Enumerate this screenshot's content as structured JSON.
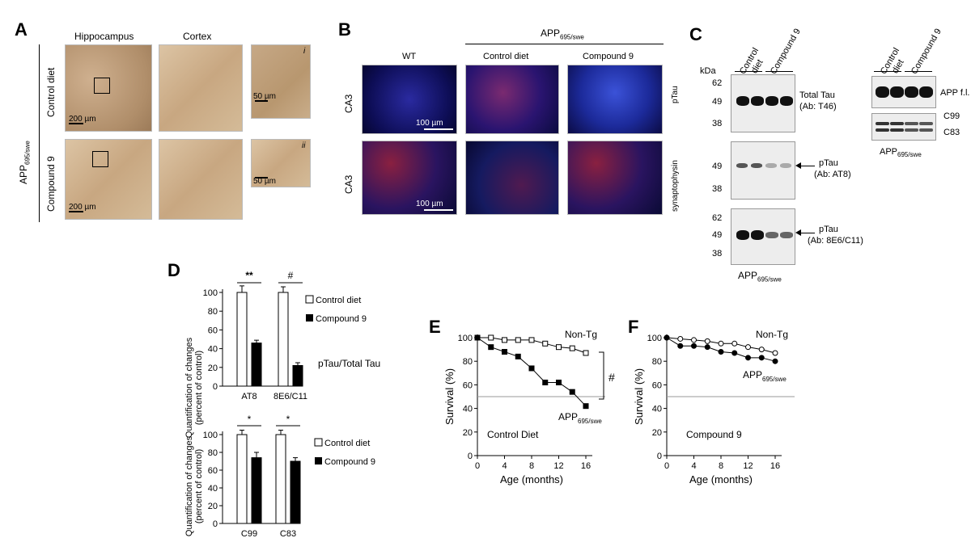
{
  "panelA": {
    "label": "A",
    "col_hippocampus": "Hippocampus",
    "col_cortex": "Cortex",
    "row_control": "Control diet",
    "row_compound": "Compound 9",
    "genotype": "APP",
    "genotype_sub": "695/swe",
    "inset_i": "i",
    "inset_ii": "ii",
    "scale_200a": "200 µm",
    "scale_200b": "200 µm",
    "scale_50a": "50 µm",
    "scale_50b": "50 µm"
  },
  "panelB": {
    "label": "B",
    "group_main": "APP",
    "group_sub": "695/swe",
    "col_wt": "WT",
    "col_control": "Control diet",
    "col_compound": "Compound 9",
    "row_ca3_1": "CA3",
    "row_ca3_2": "CA3",
    "marker_ptau": "pTau",
    "marker_syn": "synaptophysin",
    "scale_a": "100 µm",
    "scale_b": "100 µm"
  },
  "panelC": {
    "label": "C",
    "kda": "kDa",
    "lane_control_1": "Control",
    "lane_control_2": "diet",
    "lane_compound": "Compound 9",
    "lane_control_r1": "Control",
    "lane_control_r2": "diet",
    "lane_compound_r": "Compound 9",
    "mw1": [
      "62",
      "49",
      "38"
    ],
    "mw2": [
      "49",
      "38"
    ],
    "mw3": [
      "62",
      "49",
      "38"
    ],
    "blot1_name": "Total Tau",
    "blot1_ab": "(Ab: T46)",
    "blot2_name": "pTau",
    "blot2_ab": "(Ab: AT8)",
    "blot3_name": "pTau",
    "blot3_ab": "(Ab: 8E6/C11)",
    "app_fl": "APP f.l.",
    "c99": "C99",
    "c83": "C83",
    "genotype_main": "APP",
    "genotype_sub": "695/swe",
    "genotype_main_r": "APP",
    "genotype_sub_r": "695/swe"
  },
  "panelD": {
    "label": "D",
    "ylabel1": "Quantification of changes",
    "ylabel2": "(percent of control)",
    "ylabel1b": "Quantification of changes",
    "ylabel2b": "(percent of control)",
    "legend_control": "Control diet",
    "legend_compound": "Compound 9",
    "legend_control_b": "Control diet",
    "legend_compound_b": "Compound 9",
    "ratio_label": "pTau/Total Tau",
    "sig_top_1": "**",
    "sig_top_2": "#",
    "sig_bot_1": "*",
    "sig_bot_2": "*"
  },
  "panelE": {
    "label": "E",
    "annotation": "Control Diet",
    "nontg": "Non-Tg",
    "app": "APP",
    "app_sub": "695/swe",
    "sig": "#"
  },
  "panelF": {
    "label": "F",
    "annotation": "Compound 9",
    "nontg": "Non-Tg",
    "app": "APP",
    "app_sub": "695/swe"
  },
  "chart_data": [
    {
      "type": "bar",
      "title": "",
      "ylabel": "Quantification of changes (percent of control)",
      "categories": [
        "AT8",
        "8E6/C11"
      ],
      "series": [
        {
          "name": "Control diet",
          "values": [
            100,
            100
          ],
          "error": [
            7,
            6
          ]
        },
        {
          "name": "Compound 9",
          "values": [
            46,
            22
          ],
          "error": [
            3,
            3
          ]
        }
      ],
      "ylim": [
        0,
        100
      ],
      "yticks": [
        0,
        20,
        40,
        60,
        80,
        100
      ]
    },
    {
      "type": "bar",
      "title": "",
      "ylabel": "Quantification of changes (percent of control)",
      "categories": [
        "C99",
        "C83"
      ],
      "series": [
        {
          "name": "Control diet",
          "values": [
            100,
            100
          ],
          "error": [
            5,
            5
          ]
        },
        {
          "name": "Compound 9",
          "values": [
            74,
            70
          ],
          "error": [
            6,
            4
          ]
        }
      ],
      "ylim": [
        0,
        100
      ],
      "yticks": [
        0,
        20,
        40,
        60,
        80,
        100
      ]
    },
    {
      "type": "line",
      "title": "",
      "xlabel": "Age (months)",
      "ylabel": "Survival (%)",
      "xlim": [
        0,
        16
      ],
      "ylim": [
        0,
        100
      ],
      "xticks": [
        0,
        4,
        8,
        12,
        16
      ],
      "yticks": [
        0,
        20,
        40,
        60,
        80,
        100
      ],
      "reference_line": 50,
      "series": [
        {
          "name": "Non-Tg",
          "marker": "open-square",
          "x": [
            0,
            2,
            4,
            6,
            8,
            10,
            12,
            14,
            16
          ],
          "y": [
            100,
            100,
            98,
            98,
            98,
            95,
            92,
            91,
            87
          ]
        },
        {
          "name": "APP695/swe",
          "marker": "filled-square",
          "x": [
            0,
            2,
            4,
            6,
            8,
            10,
            12,
            14,
            16
          ],
          "y": [
            100,
            92,
            88,
            84,
            74,
            62,
            62,
            54,
            42
          ]
        }
      ]
    },
    {
      "type": "line",
      "title": "",
      "xlabel": "Age (months)",
      "ylabel": "Survival (%)",
      "xlim": [
        0,
        16
      ],
      "ylim": [
        0,
        100
      ],
      "xticks": [
        0,
        4,
        8,
        12,
        16
      ],
      "yticks": [
        0,
        20,
        40,
        60,
        80,
        100
      ],
      "reference_line": 50,
      "series": [
        {
          "name": "Non-Tg",
          "marker": "open-circle",
          "x": [
            0,
            2,
            4,
            6,
            8,
            10,
            12,
            14,
            16
          ],
          "y": [
            100,
            99,
            98,
            97,
            95,
            95,
            92,
            90,
            87
          ]
        },
        {
          "name": "APP695/swe",
          "marker": "filled-circle",
          "x": [
            0,
            2,
            4,
            6,
            8,
            10,
            12,
            14,
            16
          ],
          "y": [
            100,
            93,
            93,
            92,
            88,
            87,
            83,
            83,
            80
          ]
        }
      ]
    }
  ]
}
